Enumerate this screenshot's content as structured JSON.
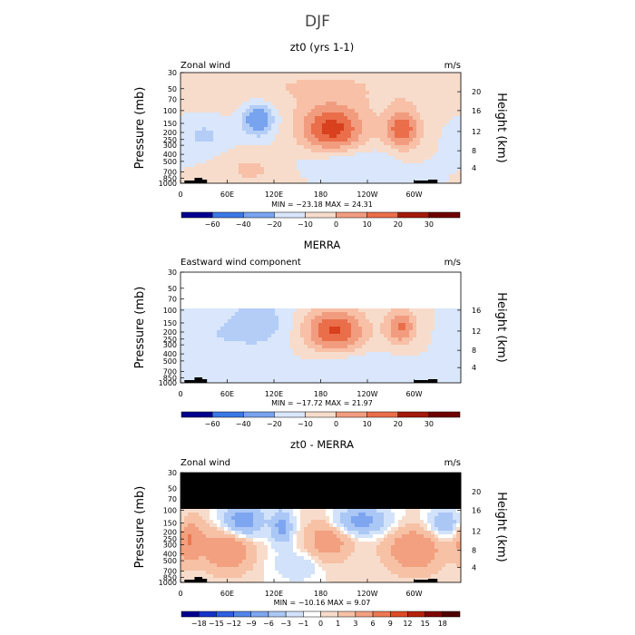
{
  "figure_title": "DJF",
  "chart_data": [
    {
      "type": "heatmap",
      "title": "zt0 (yrs 1-1)",
      "subtitle": "Zonal wind",
      "units": "m/s",
      "ylabel": "Pressure (mb)",
      "ylabel_right": "Height (km)",
      "xticks": [
        "0",
        "60E",
        "120E",
        "180",
        "120W",
        "60W"
      ],
      "yticks": [
        "30",
        "50",
        "70",
        "100",
        "150",
        "200",
        "250",
        "300",
        "400",
        "500",
        "700",
        "850",
        "1000"
      ],
      "yticks_right": [
        "20",
        "16",
        "12",
        "8",
        "4"
      ],
      "min_max_text": "MIN = −23.18   MAX =  24.31",
      "min": -23.18,
      "max": 24.31,
      "masked_above_mb": null,
      "colorbar_labels": [
        "−60",
        "−40",
        "−20",
        "−10",
        "0",
        "10",
        "20",
        "30"
      ],
      "field": [
        {
          "lon": 195,
          "p": 180,
          "amp": 22,
          "sx": 30,
          "sy": 0.55
        },
        {
          "lon": 285,
          "p": 180,
          "amp": 19,
          "sx": 16,
          "sy": 0.45
        },
        {
          "lon": 100,
          "p": 130,
          "amp": -18,
          "sx": 14,
          "sy": 0.35
        },
        {
          "lon": 215,
          "p": 500,
          "amp": -7,
          "sx": 40,
          "sy": 0.3
        },
        {
          "lon": 30,
          "p": 220,
          "amp": -6,
          "sx": 22,
          "sy": 0.4
        },
        {
          "lon": 90,
          "p": 650,
          "amp": 6,
          "sx": 30,
          "sy": 0.4
        },
        {
          "lon": 170,
          "p": 45,
          "amp": 5,
          "sx": 170,
          "sy": 0.55
        }
      ]
    },
    {
      "type": "heatmap",
      "title": "MERRA",
      "subtitle": "Eastward wind component",
      "units": "m/s",
      "ylabel": "Pressure (mb)",
      "ylabel_right": "Height (km)",
      "xticks": [
        "0",
        "60E",
        "120E",
        "180",
        "120W",
        "60W"
      ],
      "yticks": [
        "30",
        "50",
        "70",
        "100",
        "150",
        "200",
        "250",
        "300",
        "400",
        "500",
        "700",
        "850",
        "1000"
      ],
      "yticks_right": [
        "16",
        "12",
        "8",
        "4"
      ],
      "min_max_text": "MIN = −17.72   MAX =  21.97",
      "min": -17.72,
      "max": 21.97,
      "masked_above_mb": 100,
      "colorbar_labels": [
        "−60",
        "−40",
        "−20",
        "−10",
        "0",
        "10",
        "20",
        "30"
      ],
      "field": [
        {
          "lon": 198,
          "p": 190,
          "amp": 21,
          "sx": 28,
          "sy": 0.5
        },
        {
          "lon": 283,
          "p": 170,
          "amp": 16,
          "sx": 14,
          "sy": 0.4
        },
        {
          "lon": 100,
          "p": 150,
          "amp": -8,
          "sx": 30,
          "sy": 0.6
        },
        {
          "lon": 220,
          "p": 550,
          "amp": -5,
          "sx": 40,
          "sy": 0.3
        },
        {
          "lon": 35,
          "p": 250,
          "amp": -4,
          "sx": 30,
          "sy": 0.6
        }
      ]
    },
    {
      "type": "heatmap",
      "title": "zt0 - MERRA",
      "subtitle": "Zonal wind",
      "units": "m/s",
      "ylabel": "Pressure (mb)",
      "ylabel_right": "Height (km)",
      "xticks": [
        "0",
        "60E",
        "120E",
        "180",
        "120W",
        "60W"
      ],
      "yticks": [
        "30",
        "50",
        "70",
        "100",
        "150",
        "200",
        "250",
        "300",
        "400",
        "500",
        "700",
        "850",
        "1000"
      ],
      "yticks_right": [
        "20",
        "16",
        "12",
        "8",
        "4"
      ],
      "min_max_text": "MIN = −10.16   MAX =   9.07",
      "min": -10.16,
      "max": 9.07,
      "masked_above_mb": 100,
      "colorbar_labels": [
        "−18",
        "−15",
        "−12",
        "−9",
        "−6",
        "−3",
        "−1",
        "0",
        "1",
        "3",
        "6",
        "9",
        "12",
        "15",
        "18"
      ],
      "field": [
        {
          "lon": 80,
          "p": 140,
          "amp": -9,
          "sx": 18,
          "sy": 0.35
        },
        {
          "lon": 230,
          "p": 140,
          "amp": -8,
          "sx": 25,
          "sy": 0.3
        },
        {
          "lon": 130,
          "p": 170,
          "amp": -7,
          "sx": 10,
          "sy": 0.4
        },
        {
          "lon": 340,
          "p": 150,
          "amp": -6,
          "sx": 15,
          "sy": 0.3
        },
        {
          "lon": 60,
          "p": 350,
          "amp": 6,
          "sx": 22,
          "sy": 0.5
        },
        {
          "lon": 190,
          "p": 250,
          "amp": 5,
          "sx": 20,
          "sy": 0.5
        },
        {
          "lon": 300,
          "p": 350,
          "amp": 6,
          "sx": 25,
          "sy": 0.5
        },
        {
          "lon": 10,
          "p": 250,
          "amp": 6,
          "sx": 12,
          "sy": 0.5
        },
        {
          "lon": 150,
          "p": 600,
          "amp": -3,
          "sx": 20,
          "sy": 0.3
        }
      ]
    }
  ],
  "colors": {
    "scale8": [
      "#00008f",
      "#1a3fd1",
      "#3b77e6",
      "#77a3ef",
      "#b3cdf7",
      "#d9e6fb",
      "#f7dccb",
      "#f7c0a7",
      "#f29c7f",
      "#ea6e4a",
      "#d8401e",
      "#a21a0a",
      "#6e0000"
    ],
    "scale15": [
      "#00008f",
      "#1433c8",
      "#2e5fe0",
      "#5285ea",
      "#7ea6f0",
      "#aac7f6",
      "#d2e2fa",
      "#ffffff",
      "#f8dccb",
      "#f6c1a5",
      "#f2a07f",
      "#ec7851",
      "#de4b25",
      "#b4220c",
      "#7f0505",
      "#500000"
    ],
    "mask": "#000000",
    "topography": "#000000"
  }
}
